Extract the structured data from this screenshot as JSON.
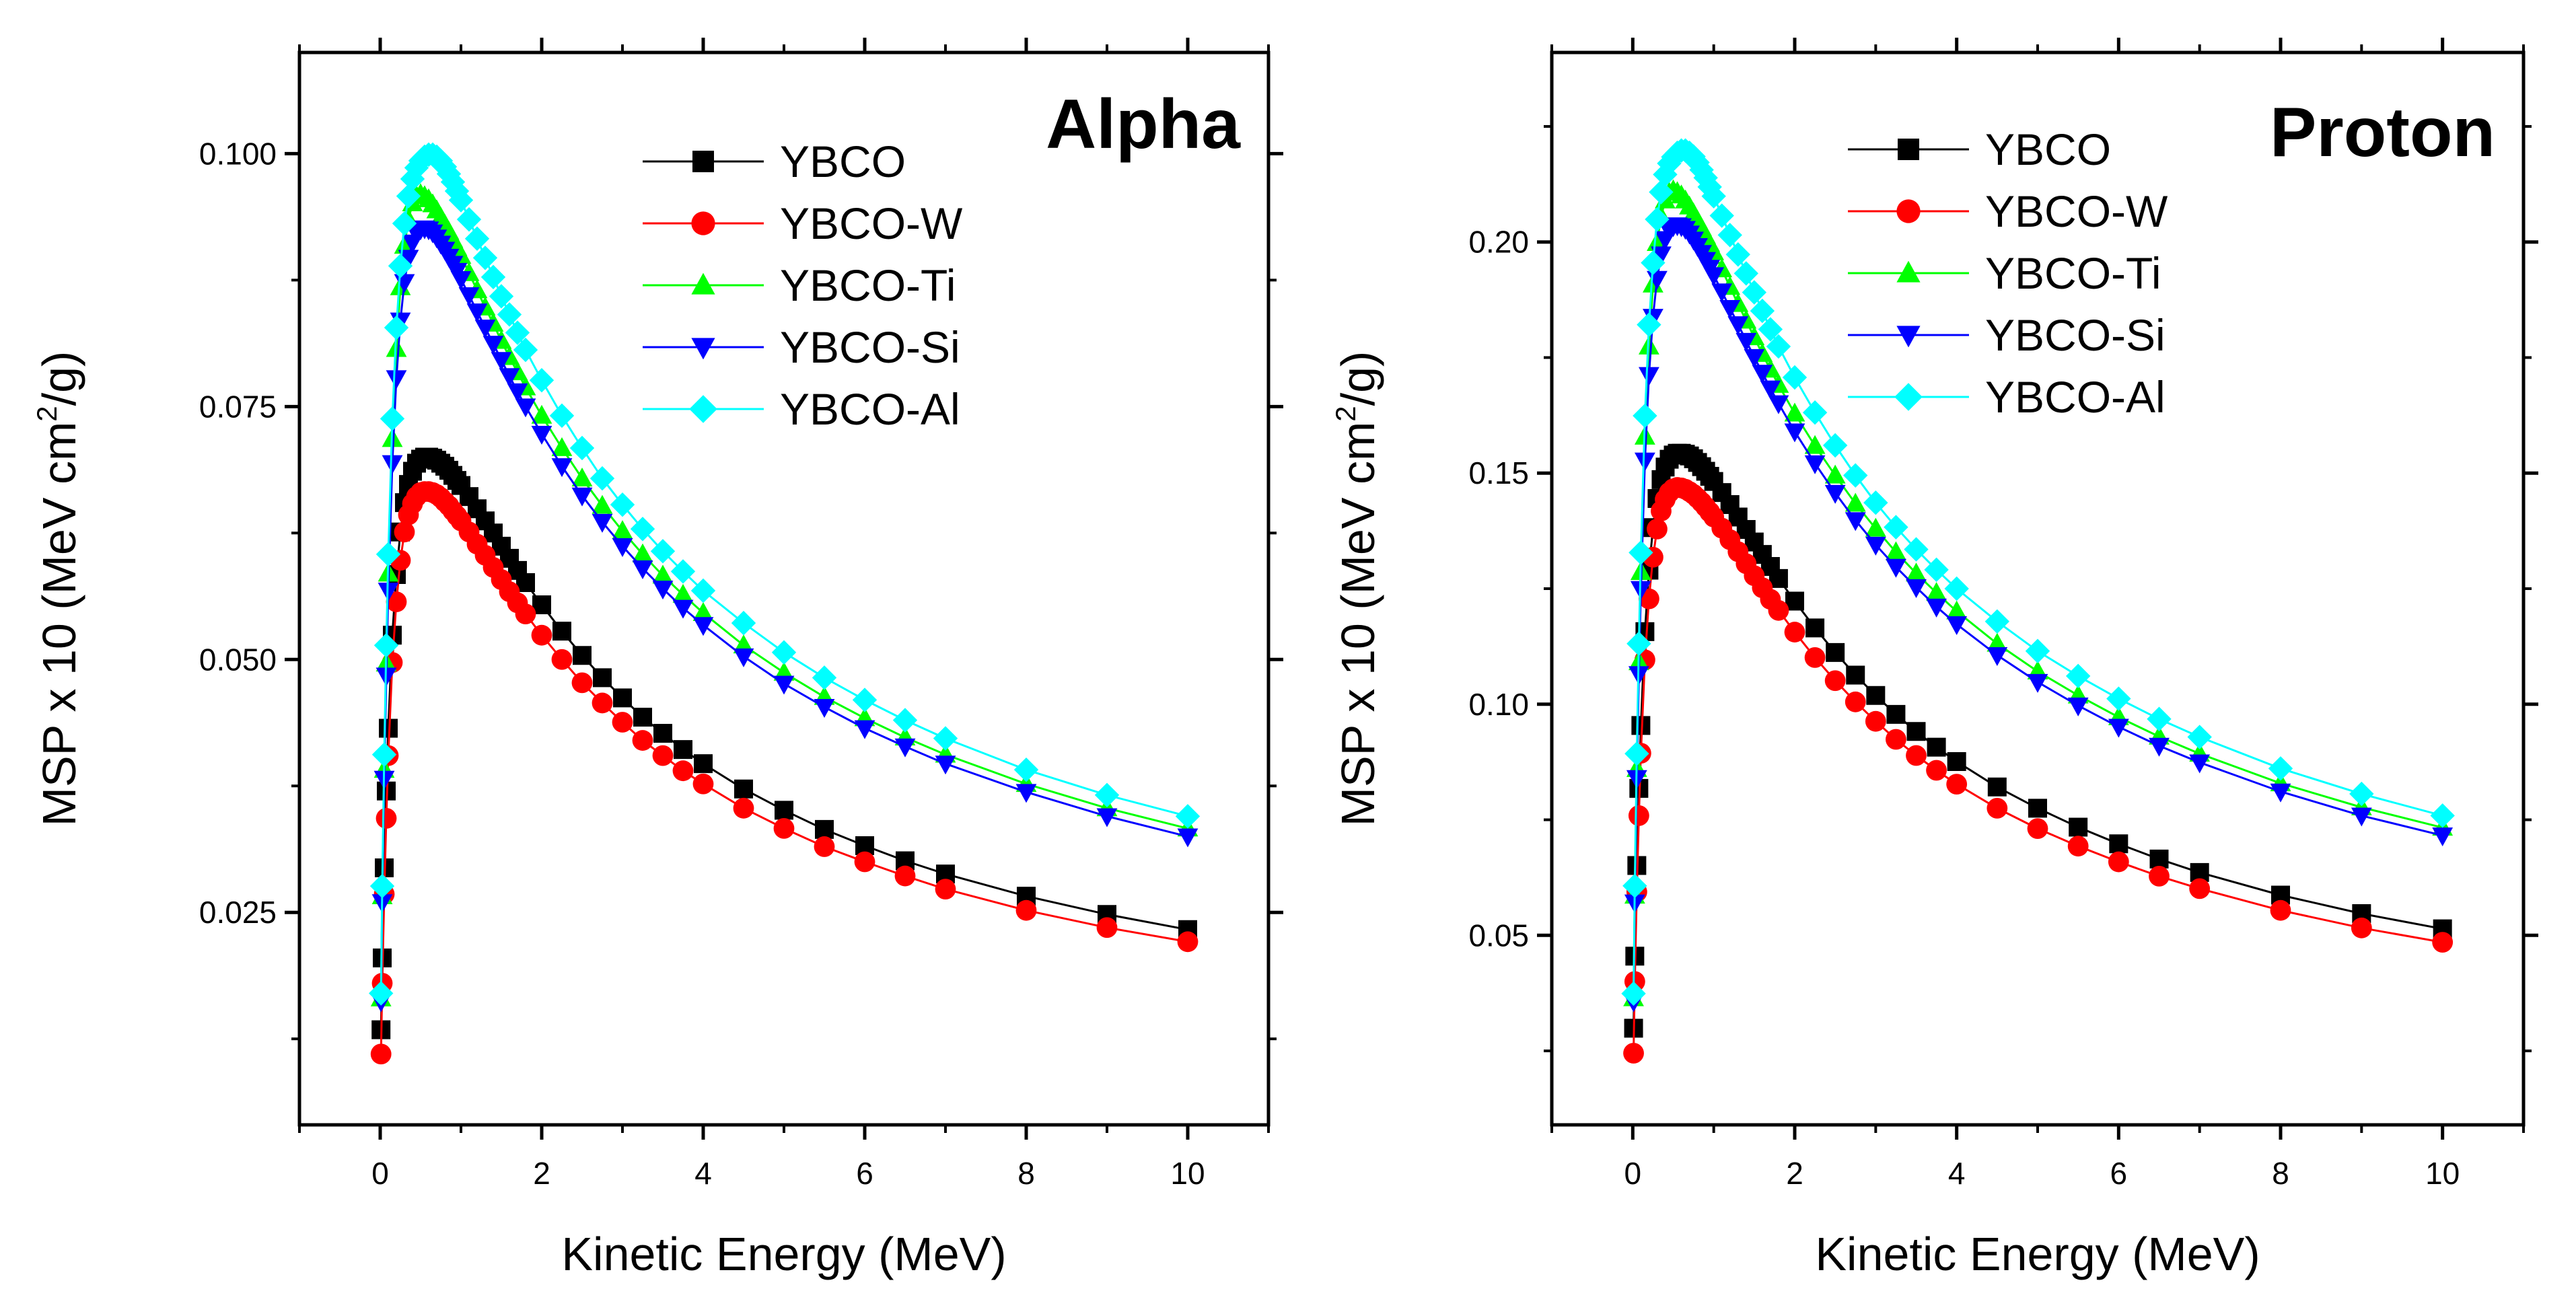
{
  "colors": {
    "YBCO": "#000000",
    "YBCO-W": "#ff0000",
    "YBCO-Ti": "#00ff00",
    "YBCO-Si": "#0000ff",
    "YBCO-Al": "#00ffff"
  },
  "chart_data": [
    {
      "type": "line",
      "title": "Alpha",
      "xlabel": "Kinetic Energy (MeV)",
      "ylabel": {
        "prefix": "MSP x 10 (MeV cm",
        "sup": "2",
        "suffix": "/g)"
      },
      "xlim": [
        -1,
        11
      ],
      "ylim": [
        0.004,
        0.11
      ],
      "xticks": [
        0,
        2,
        4,
        6,
        8,
        10
      ],
      "xtick_labels": [
        "0",
        "2",
        "4",
        "6",
        "8",
        "10"
      ],
      "yticks": [
        0.025,
        0.05,
        0.075,
        0.1
      ],
      "ytick_labels": [
        "0.025",
        "0.050",
        "0.075",
        "0.100"
      ],
      "legend": "top-center",
      "x": [
        0.01,
        0.025,
        0.05,
        0.075,
        0.1,
        0.15,
        0.2,
        0.25,
        0.3,
        0.35,
        0.4,
        0.45,
        0.5,
        0.55,
        0.6,
        0.65,
        0.7,
        0.75,
        0.8,
        0.85,
        0.9,
        0.95,
        1.0,
        1.1,
        1.2,
        1.3,
        1.4,
        1.5,
        1.6,
        1.7,
        1.8,
        2.0,
        2.25,
        2.5,
        2.75,
        3.0,
        3.25,
        3.5,
        3.75,
        4.0,
        4.5,
        5.0,
        5.5,
        6.0,
        6.5,
        7.0,
        8.0,
        9.0,
        10.0
      ],
      "series": [
        {
          "name": "YBCO",
          "marker": "square",
          "values": [
            0.0134,
            0.0205,
            0.0294,
            0.037,
            0.0432,
            0.0524,
            0.0584,
            0.0626,
            0.0655,
            0.0673,
            0.0686,
            0.0694,
            0.0698,
            0.07,
            0.07,
            0.0699,
            0.0697,
            0.0694,
            0.0691,
            0.0687,
            0.0682,
            0.0677,
            0.0672,
            0.0661,
            0.0649,
            0.0637,
            0.0625,
            0.0612,
            0.06,
            0.0588,
            0.0576,
            0.0554,
            0.0528,
            0.0504,
            0.0482,
            0.0462,
            0.0443,
            0.0427,
            0.0411,
            0.0397,
            0.0372,
            0.0351,
            0.0332,
            0.0316,
            0.0301,
            0.0288,
            0.0266,
            0.0248,
            0.0233
          ]
        },
        {
          "name": "YBCO-W",
          "marker": "circle",
          "values": [
            0.011,
            0.018,
            0.0268,
            0.0343,
            0.0405,
            0.0497,
            0.0557,
            0.0598,
            0.0626,
            0.0643,
            0.0654,
            0.0661,
            0.0665,
            0.0666,
            0.0666,
            0.0665,
            0.0663,
            0.066,
            0.0656,
            0.0652,
            0.0647,
            0.0642,
            0.0637,
            0.0626,
            0.0614,
            0.0603,
            0.0591,
            0.0579,
            0.0567,
            0.0556,
            0.0545,
            0.0524,
            0.05,
            0.0477,
            0.0457,
            0.0438,
            0.042,
            0.0405,
            0.039,
            0.0377,
            0.0353,
            0.0333,
            0.0315,
            0.03,
            0.0286,
            0.0273,
            0.0252,
            0.0235,
            0.0221
          ]
        },
        {
          "name": "YBCO-Ti",
          "marker": "triangle-up",
          "values": [
            0.0165,
            0.0266,
            0.0391,
            0.0496,
            0.0585,
            0.0718,
            0.0807,
            0.0868,
            0.0909,
            0.0935,
            0.0951,
            0.0958,
            0.096,
            0.0958,
            0.0955,
            0.095,
            0.0944,
            0.0937,
            0.093,
            0.0923,
            0.0915,
            0.0907,
            0.0899,
            0.0882,
            0.0865,
            0.0848,
            0.0832,
            0.0815,
            0.0799,
            0.0784,
            0.0769,
            0.0741,
            0.0709,
            0.0679,
            0.0652,
            0.0627,
            0.0604,
            0.0583,
            0.0564,
            0.0546,
            0.0514,
            0.0487,
            0.0463,
            0.0442,
            0.0423,
            0.0406,
            0.0377,
            0.0353,
            0.0333
          ]
        },
        {
          "name": "YBCO-Si",
          "marker": "triangle-down",
          "values": [
            0.0162,
            0.026,
            0.0382,
            0.0484,
            0.0568,
            0.0694,
            0.0778,
            0.0835,
            0.0873,
            0.0897,
            0.0912,
            0.0921,
            0.0925,
            0.0926,
            0.0925,
            0.0922,
            0.0917,
            0.0911,
            0.0905,
            0.0898,
            0.0891,
            0.0884,
            0.0876,
            0.086,
            0.0844,
            0.0828,
            0.0812,
            0.0796,
            0.078,
            0.0765,
            0.075,
            0.0723,
            0.0691,
            0.0662,
            0.0636,
            0.0612,
            0.059,
            0.057,
            0.0551,
            0.0534,
            0.0503,
            0.0476,
            0.0453,
            0.0432,
            0.0414,
            0.0397,
            0.0369,
            0.0345,
            0.0325
          ]
        },
        {
          "name": "YBCO-Al",
          "marker": "diamond",
          "values": [
            0.017,
            0.0276,
            0.0406,
            0.0514,
            0.0604,
            0.0738,
            0.0828,
            0.0889,
            0.0931,
            0.0958,
            0.0975,
            0.0986,
            0.0993,
            0.0997,
            0.0999,
            0.0999,
            0.0997,
            0.0993,
            0.0987,
            0.098,
            0.0972,
            0.0963,
            0.0954,
            0.0935,
            0.0916,
            0.0897,
            0.0878,
            0.0859,
            0.0841,
            0.0823,
            0.0806,
            0.0776,
            0.0741,
            0.0709,
            0.0679,
            0.0653,
            0.0629,
            0.0607,
            0.0587,
            0.0568,
            0.0536,
            0.0507,
            0.0482,
            0.046,
            0.044,
            0.0422,
            0.0391,
            0.0366,
            0.0345
          ]
        }
      ]
    },
    {
      "type": "line",
      "title": "Proton",
      "xlabel": "Kinetic Energy (MeV)",
      "ylabel": {
        "prefix": "MSP x 10 (MeV cm",
        "sup": "2",
        "suffix": "/g)"
      },
      "xlim": [
        -1,
        11
      ],
      "ylim": [
        0.009,
        0.241
      ],
      "xticks": [
        0,
        2,
        4,
        6,
        8,
        10
      ],
      "xtick_labels": [
        "0",
        "2",
        "4",
        "6",
        "8",
        "10"
      ],
      "yticks": [
        0.05,
        0.1,
        0.15,
        0.2
      ],
      "ytick_labels": [
        "0.05",
        "0.10",
        "0.15",
        "0.20"
      ],
      "legend": "top-center",
      "x": [
        0.01,
        0.025,
        0.05,
        0.075,
        0.1,
        0.15,
        0.2,
        0.25,
        0.3,
        0.35,
        0.4,
        0.45,
        0.5,
        0.55,
        0.6,
        0.65,
        0.7,
        0.75,
        0.8,
        0.85,
        0.9,
        0.95,
        1.0,
        1.1,
        1.2,
        1.3,
        1.4,
        1.5,
        1.6,
        1.7,
        1.8,
        2.0,
        2.25,
        2.5,
        2.75,
        3.0,
        3.25,
        3.5,
        3.75,
        4.0,
        4.5,
        5.0,
        5.5,
        6.0,
        6.5,
        7.0,
        8.0,
        9.0,
        10.0
      ],
      "series": [
        {
          "name": "YBCO",
          "marker": "square",
          "values": [
            0.0299,
            0.0455,
            0.0651,
            0.0818,
            0.0954,
            0.1157,
            0.129,
            0.1382,
            0.1445,
            0.1486,
            0.1513,
            0.153,
            0.1539,
            0.1543,
            0.1543,
            0.1541,
            0.1537,
            0.1531,
            0.1523,
            0.1514,
            0.1504,
            0.1493,
            0.1482,
            0.1458,
            0.1432,
            0.1405,
            0.1378,
            0.1351,
            0.1324,
            0.1298,
            0.1272,
            0.1223,
            0.1165,
            0.1112,
            0.1063,
            0.1019,
            0.0978,
            0.0941,
            0.0907,
            0.0876,
            0.0821,
            0.0775,
            0.0734,
            0.0698,
            0.0665,
            0.0636,
            0.0587,
            0.0547,
            0.0514
          ]
        },
        {
          "name": "YBCO-W",
          "marker": "circle",
          "values": [
            0.0245,
            0.04,
            0.0594,
            0.0759,
            0.0894,
            0.1096,
            0.1228,
            0.1318,
            0.1379,
            0.1418,
            0.1443,
            0.1458,
            0.1466,
            0.1469,
            0.1468,
            0.1465,
            0.146,
            0.1454,
            0.1446,
            0.1437,
            0.1427,
            0.1416,
            0.1405,
            0.1381,
            0.1356,
            0.133,
            0.1304,
            0.1278,
            0.1252,
            0.1227,
            0.1203,
            0.1156,
            0.1101,
            0.1051,
            0.1005,
            0.0963,
            0.0924,
            0.0889,
            0.0857,
            0.0827,
            0.0775,
            0.0731,
            0.0693,
            0.0659,
            0.0628,
            0.0601,
            0.0554,
            0.0516,
            0.0485
          ]
        },
        {
          "name": "YBCO-Ti",
          "marker": "triangle-up",
          "values": [
            0.0364,
            0.0586,
            0.086,
            0.1091,
            0.1286,
            0.1579,
            0.1774,
            0.1908,
            0.1998,
            0.2055,
            0.209,
            0.2107,
            0.2112,
            0.2108,
            0.2101,
            0.209,
            0.2077,
            0.2062,
            0.2046,
            0.203,
            0.2013,
            0.1996,
            0.1978,
            0.1941,
            0.1903,
            0.1866,
            0.183,
            0.1794,
            0.1758,
            0.1724,
            0.1691,
            0.1629,
            0.1559,
            0.1495,
            0.1434,
            0.138,
            0.1329,
            0.1283,
            0.1241,
            0.1201,
            0.1131,
            0.1071,
            0.1019,
            0.0972,
            0.093,
            0.0893,
            0.0829,
            0.0777,
            0.0733
          ]
        },
        {
          "name": "YBCO-Si",
          "marker": "triangle-down",
          "values": [
            0.0357,
            0.0571,
            0.084,
            0.1065,
            0.1249,
            0.1527,
            0.1712,
            0.1838,
            0.192,
            0.1973,
            0.2006,
            0.2025,
            0.2034,
            0.2036,
            0.2034,
            0.2028,
            0.2018,
            0.2005,
            0.1991,
            0.1976,
            0.1961,
            0.1944,
            0.1928,
            0.1893,
            0.1857,
            0.1822,
            0.1786,
            0.1751,
            0.1717,
            0.1683,
            0.1651,
            0.159,
            0.1521,
            0.1457,
            0.1398,
            0.1345,
            0.1297,
            0.1253,
            0.1211,
            0.1173,
            0.1106,
            0.1048,
            0.0997,
            0.0951,
            0.091,
            0.0874,
            0.0811,
            0.0759,
            0.0716
          ]
        },
        {
          "name": "YBCO-Al",
          "marker": "diamond",
          "values": [
            0.0374,
            0.0607,
            0.0893,
            0.1131,
            0.1328,
            0.1624,
            0.1821,
            0.1955,
            0.2049,
            0.2108,
            0.2146,
            0.217,
            0.2184,
            0.2193,
            0.2198,
            0.2198,
            0.2193,
            0.2185,
            0.2172,
            0.2156,
            0.2139,
            0.2119,
            0.2099,
            0.2057,
            0.2015,
            0.1973,
            0.1932,
            0.1891,
            0.1851,
            0.1811,
            0.1774,
            0.1707,
            0.1631,
            0.156,
            0.1495,
            0.1436,
            0.1383,
            0.1335,
            0.1291,
            0.125,
            0.1179,
            0.1115,
            0.1061,
            0.1012,
            0.0968,
            0.0929,
            0.0861,
            0.0806,
            0.0759
          ]
        }
      ]
    }
  ]
}
